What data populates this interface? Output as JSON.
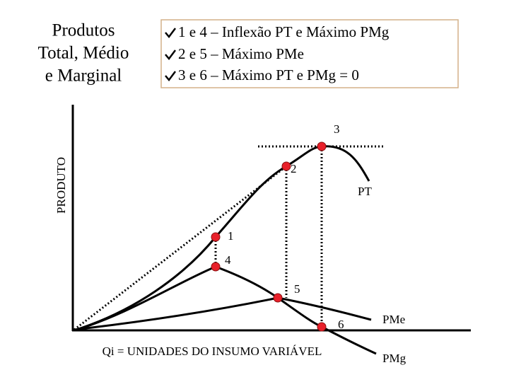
{
  "title": {
    "lines": [
      "Produtos",
      "Total, Médio",
      "e Marginal"
    ]
  },
  "legend_box": {
    "items": [
      "1 e 4 – Inflexão PT e Máximo PMg",
      "2 e 5 – Máximo PMe",
      "3 e 6 – Máximo PT e PMg = 0"
    ]
  },
  "y_axis_label": "PRODUTO",
  "x_axis_label": "Qi = UNIDADES DO INSUMO VARIÁVEL",
  "curve_labels": {
    "pt": "PT",
    "pme": "PMe",
    "pmg": "PMg"
  },
  "points": [
    "1",
    "2",
    "3",
    "4",
    "5",
    "6"
  ]
}
